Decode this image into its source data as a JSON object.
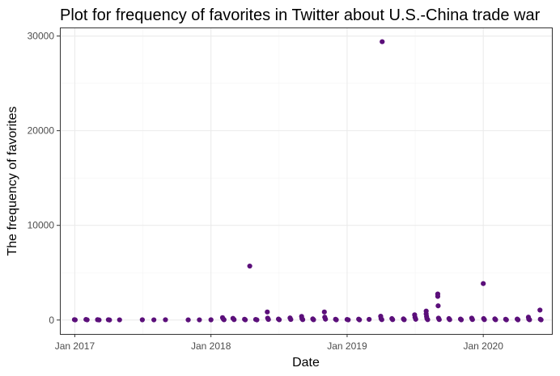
{
  "chart_data": {
    "type": "scatter",
    "title": "Plot for frequency of favorites in Twitter about U.S.-China trade war",
    "xlabel": "Date",
    "ylabel": "The frequency of favorites",
    "xlim": [
      "2016-11-22",
      "2020-07-03"
    ],
    "ylim": [
      -1470,
      30900
    ],
    "x_ticks": [
      {
        "value": "2017-01-01",
        "label": "Jan 2017"
      },
      {
        "value": "2018-01-01",
        "label": "Jan 2018"
      },
      {
        "value": "2019-01-01",
        "label": "Jan 2019"
      },
      {
        "value": "2020-01-01",
        "label": "Jan 2020"
      }
    ],
    "y_ticks": [
      0,
      10000,
      20000,
      30000
    ],
    "grid": true,
    "point_color": "#5b0f7a",
    "points": [
      {
        "x": "2016-12-31",
        "y": 40
      },
      {
        "x": "2017-01-02",
        "y": 15
      },
      {
        "x": "2017-01-31",
        "y": 60
      },
      {
        "x": "2017-02-03",
        "y": 20
      },
      {
        "x": "2017-03-03",
        "y": 35
      },
      {
        "x": "2017-03-07",
        "y": 10
      },
      {
        "x": "2017-04-01",
        "y": 30
      },
      {
        "x": "2017-04-04",
        "y": 5
      },
      {
        "x": "2017-05-01",
        "y": 20
      },
      {
        "x": "2017-07-01",
        "y": 25
      },
      {
        "x": "2017-08-01",
        "y": 20
      },
      {
        "x": "2017-09-01",
        "y": 30
      },
      {
        "x": "2017-11-01",
        "y": 15
      },
      {
        "x": "2017-12-01",
        "y": 20
      },
      {
        "x": "2018-01-01",
        "y": 25
      },
      {
        "x": "2018-02-01",
        "y": 250
      },
      {
        "x": "2018-02-03",
        "y": 120
      },
      {
        "x": "2018-02-05",
        "y": 30
      },
      {
        "x": "2018-03-01",
        "y": 180
      },
      {
        "x": "2018-03-04",
        "y": 40
      },
      {
        "x": "2018-04-01",
        "y": 80
      },
      {
        "x": "2018-04-03",
        "y": 20
      },
      {
        "x": "2018-04-15",
        "y": 5700
      },
      {
        "x": "2018-05-01",
        "y": 60
      },
      {
        "x": "2018-05-04",
        "y": 15
      },
      {
        "x": "2018-06-01",
        "y": 850
      },
      {
        "x": "2018-06-02",
        "y": 200
      },
      {
        "x": "2018-06-04",
        "y": 60
      },
      {
        "x": "2018-07-01",
        "y": 100
      },
      {
        "x": "2018-07-03",
        "y": 30
      },
      {
        "x": "2018-08-01",
        "y": 220
      },
      {
        "x": "2018-08-03",
        "y": 60
      },
      {
        "x": "2018-09-01",
        "y": 380
      },
      {
        "x": "2018-09-02",
        "y": 150
      },
      {
        "x": "2018-09-04",
        "y": 40
      },
      {
        "x": "2018-10-01",
        "y": 120
      },
      {
        "x": "2018-10-03",
        "y": 30
      },
      {
        "x": "2018-11-01",
        "y": 850
      },
      {
        "x": "2018-11-02",
        "y": 300
      },
      {
        "x": "2018-11-04",
        "y": 90
      },
      {
        "x": "2018-12-01",
        "y": 80
      },
      {
        "x": "2018-12-03",
        "y": 20
      },
      {
        "x": "2019-01-01",
        "y": 60
      },
      {
        "x": "2019-01-04",
        "y": 20
      },
      {
        "x": "2019-02-01",
        "y": 90
      },
      {
        "x": "2019-02-03",
        "y": 25
      },
      {
        "x": "2019-03-01",
        "y": 70
      },
      {
        "x": "2019-04-01",
        "y": 400
      },
      {
        "x": "2019-04-02",
        "y": 150
      },
      {
        "x": "2019-04-04",
        "y": 40
      },
      {
        "x": "2019-04-05",
        "y": 29400
      },
      {
        "x": "2019-05-01",
        "y": 150
      },
      {
        "x": "2019-05-03",
        "y": 40
      },
      {
        "x": "2019-06-01",
        "y": 120
      },
      {
        "x": "2019-06-03",
        "y": 30
      },
      {
        "x": "2019-07-01",
        "y": 550
      },
      {
        "x": "2019-07-02",
        "y": 280
      },
      {
        "x": "2019-07-04",
        "y": 80
      },
      {
        "x": "2019-08-01",
        "y": 950
      },
      {
        "x": "2019-08-01",
        "y": 650
      },
      {
        "x": "2019-08-02",
        "y": 380
      },
      {
        "x": "2019-08-03",
        "y": 150
      },
      {
        "x": "2019-08-05",
        "y": 40
      },
      {
        "x": "2019-09-01",
        "y": 2750
      },
      {
        "x": "2019-09-01",
        "y": 2500
      },
      {
        "x": "2019-09-02",
        "y": 1500
      },
      {
        "x": "2019-09-03",
        "y": 200
      },
      {
        "x": "2019-09-05",
        "y": 50
      },
      {
        "x": "2019-10-01",
        "y": 150
      },
      {
        "x": "2019-10-03",
        "y": 40
      },
      {
        "x": "2019-11-01",
        "y": 100
      },
      {
        "x": "2019-11-03",
        "y": 25
      },
      {
        "x": "2019-12-01",
        "y": 200
      },
      {
        "x": "2019-12-03",
        "y": 50
      },
      {
        "x": "2020-01-01",
        "y": 3850
      },
      {
        "x": "2020-01-02",
        "y": 150
      },
      {
        "x": "2020-01-04",
        "y": 40
      },
      {
        "x": "2020-02-01",
        "y": 120
      },
      {
        "x": "2020-02-03",
        "y": 30
      },
      {
        "x": "2020-03-01",
        "y": 80
      },
      {
        "x": "2020-03-03",
        "y": 20
      },
      {
        "x": "2020-04-01",
        "y": 100
      },
      {
        "x": "2020-04-03",
        "y": 25
      },
      {
        "x": "2020-05-01",
        "y": 300
      },
      {
        "x": "2020-05-02",
        "y": 100
      },
      {
        "x": "2020-05-04",
        "y": 30
      },
      {
        "x": "2020-06-01",
        "y": 1050
      },
      {
        "x": "2020-06-02",
        "y": 80
      },
      {
        "x": "2020-06-04",
        "y": 20
      }
    ]
  }
}
